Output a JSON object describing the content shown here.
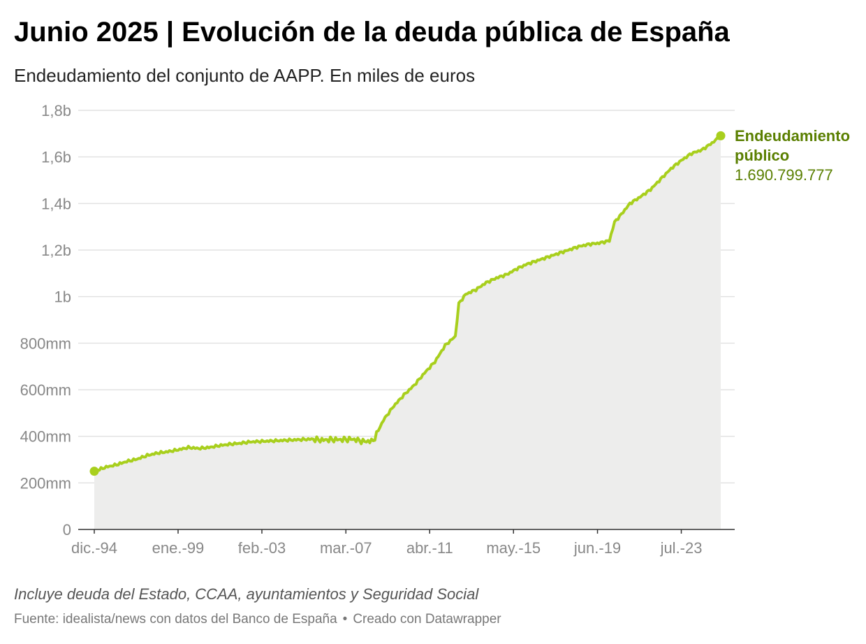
{
  "header": {
    "title": "Junio 2025 | Evolución de la deuda pública de España",
    "subtitle": "Endeudamiento del conjunto de AAPP. En miles de euros"
  },
  "footer": {
    "note": "Incluye deuda del Estado, CCAA, ayuntamientos y Seguridad Social",
    "source": "Fuente: idealista/news con datos del Banco de España",
    "separator": "•",
    "credit": "Creado con Datawrapper"
  },
  "colors": {
    "line": "#a8cf1d",
    "label": "#5a7f00",
    "area": "#ededec",
    "grid": "#e2e2e2",
    "axis": "#333333"
  },
  "chart_data": {
    "type": "area",
    "title": "Junio 2025 | Evolución de la deuda pública de España",
    "ylabel": "Endeudamiento del conjunto de AAPP. En miles de euros",
    "ylim": [
      0,
      1800000000
    ],
    "xlim": [
      1994.92,
      2025.42
    ],
    "y_ticks": [
      {
        "value": 0,
        "label": "0"
      },
      {
        "value": 200000000,
        "label": "200mm"
      },
      {
        "value": 400000000,
        "label": "400mm"
      },
      {
        "value": 600000000,
        "label": "600mm"
      },
      {
        "value": 800000000,
        "label": "800mm"
      },
      {
        "value": 1000000000,
        "label": "1b"
      },
      {
        "value": 1200000000,
        "label": "1,2b"
      },
      {
        "value": 1400000000,
        "label": "1,4b"
      },
      {
        "value": 1600000000,
        "label": "1,6b"
      },
      {
        "value": 1800000000,
        "label": "1,8b"
      }
    ],
    "x_ticks": [
      {
        "value": 1994.92,
        "label": "dic.-94"
      },
      {
        "value": 1999.0,
        "label": "ene.-99"
      },
      {
        "value": 2003.08,
        "label": "feb.-03"
      },
      {
        "value": 2007.17,
        "label": "mar.-07"
      },
      {
        "value": 2011.25,
        "label": "abr.-11"
      },
      {
        "value": 2015.33,
        "label": "may.-15"
      },
      {
        "value": 2019.42,
        "label": "jun.-19"
      },
      {
        "value": 2023.5,
        "label": "jul.-23"
      }
    ],
    "series": [
      {
        "name": "Endeudamiento público",
        "last_value_label": "1.690.799.777",
        "points": [
          [
            1994.92,
            250000000
          ],
          [
            1995.5,
            268000000
          ],
          [
            1996.0,
            278000000
          ],
          [
            1996.5,
            292000000
          ],
          [
            1997.0,
            302000000
          ],
          [
            1997.5,
            318000000
          ],
          [
            1998.0,
            328000000
          ],
          [
            1998.5,
            334000000
          ],
          [
            1999.0,
            342000000
          ],
          [
            1999.5,
            352000000
          ],
          [
            2000.0,
            348000000
          ],
          [
            2000.5,
            352000000
          ],
          [
            2001.0,
            360000000
          ],
          [
            2001.5,
            366000000
          ],
          [
            2002.0,
            370000000
          ],
          [
            2002.5,
            376000000
          ],
          [
            2003.0,
            378000000
          ],
          [
            2003.5,
            380000000
          ],
          [
            2004.0,
            382000000
          ],
          [
            2004.5,
            384000000
          ],
          [
            2005.0,
            386000000
          ],
          [
            2005.5,
            388000000
          ],
          [
            2006.0,
            384000000
          ],
          [
            2006.5,
            386000000
          ],
          [
            2007.0,
            386000000
          ],
          [
            2007.5,
            388000000
          ],
          [
            2008.0,
            378000000
          ],
          [
            2008.5,
            380000000
          ],
          [
            2008.83,
            440000000
          ],
          [
            2009.0,
            470000000
          ],
          [
            2009.5,
            530000000
          ],
          [
            2010.0,
            578000000
          ],
          [
            2010.5,
            620000000
          ],
          [
            2011.0,
            672000000
          ],
          [
            2011.5,
            720000000
          ],
          [
            2012.0,
            790000000
          ],
          [
            2012.5,
            830000000
          ],
          [
            2012.67,
            970000000
          ],
          [
            2013.0,
            1010000000
          ],
          [
            2013.5,
            1030000000
          ],
          [
            2014.0,
            1060000000
          ],
          [
            2014.5,
            1080000000
          ],
          [
            2015.0,
            1095000000
          ],
          [
            2015.5,
            1120000000
          ],
          [
            2016.0,
            1140000000
          ],
          [
            2016.5,
            1155000000
          ],
          [
            2017.0,
            1170000000
          ],
          [
            2017.5,
            1185000000
          ],
          [
            2018.0,
            1200000000
          ],
          [
            2018.5,
            1215000000
          ],
          [
            2019.0,
            1225000000
          ],
          [
            2019.5,
            1230000000
          ],
          [
            2020.0,
            1240000000
          ],
          [
            2020.25,
            1320000000
          ],
          [
            2020.5,
            1345000000
          ],
          [
            2021.0,
            1400000000
          ],
          [
            2021.5,
            1428000000
          ],
          [
            2022.0,
            1460000000
          ],
          [
            2022.5,
            1505000000
          ],
          [
            2023.0,
            1550000000
          ],
          [
            2023.5,
            1585000000
          ],
          [
            2024.0,
            1615000000
          ],
          [
            2024.5,
            1630000000
          ],
          [
            2025.0,
            1660000000
          ],
          [
            2025.42,
            1690799777
          ]
        ]
      }
    ]
  }
}
